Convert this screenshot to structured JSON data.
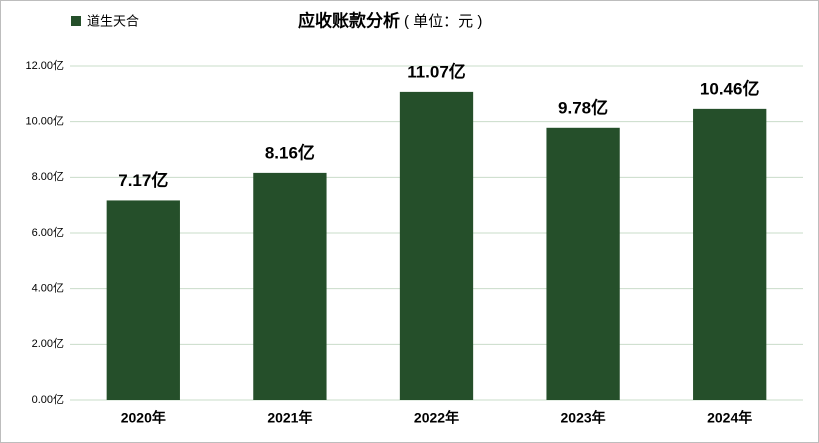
{
  "chart_data": {
    "type": "bar",
    "title": "应收账款分析",
    "subtitle": "( 单位：元 )",
    "categories": [
      "2020年",
      "2021年",
      "2022年",
      "2023年",
      "2024年"
    ],
    "series": [
      {
        "name": "道生天合",
        "color": "#254f2a",
        "values": [
          7.17,
          8.16,
          11.07,
          9.78,
          10.46
        ],
        "value_labels": [
          "7.17亿",
          "8.16亿",
          "11.07亿",
          "9.78亿",
          "10.46亿"
        ]
      }
    ],
    "ylim": [
      0,
      12
    ],
    "yticks": [
      {
        "value": 0,
        "label": "0.00亿"
      },
      {
        "value": 2,
        "label": "2.00亿"
      },
      {
        "value": 4,
        "label": "4.00亿"
      },
      {
        "value": 6,
        "label": "6.00亿"
      },
      {
        "value": 8,
        "label": "8.00亿"
      },
      {
        "value": 10,
        "label": "10.00亿"
      },
      {
        "value": 12,
        "label": "12.00亿"
      }
    ],
    "grid": true,
    "legend": "top-left"
  }
}
